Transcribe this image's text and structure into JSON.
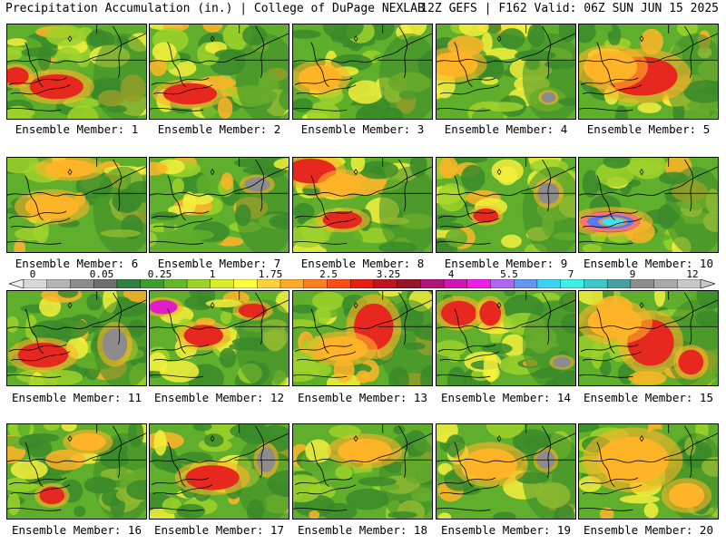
{
  "header": {
    "title_left": "Precipitation Accumulation (in.) | College of DuPage NEXLAB",
    "title_right": "12Z GEFS | F162 Valid: 06Z SUN JUN 15 2025"
  },
  "colorbar": {
    "tick_labels": [
      "0",
      "0.05",
      "0.25",
      "1",
      "1.75",
      "2.5",
      "3.25",
      "4",
      "5.5",
      "7",
      "9",
      "12"
    ],
    "colors": [
      "#d8d8d8",
      "#b4b4b4",
      "#8c8c8c",
      "#6e6e6e",
      "#2f7f3e",
      "#3f9b2f",
      "#63b82a",
      "#9ed22a",
      "#d8ec2a",
      "#ffff3c",
      "#ffd23c",
      "#ffaa28",
      "#ff7f1e",
      "#ff4b14",
      "#e61e14",
      "#c0141e",
      "#961428",
      "#b0147a",
      "#d214b4",
      "#f01ee6",
      "#b464f0",
      "#6496f0",
      "#3cd2f0",
      "#3cf0e6",
      "#3cc8c8",
      "#46a0a0",
      "#8c8c8c",
      "#a8a8a8",
      "#c8c8c8"
    ]
  },
  "legend_colors": {
    "green_dark": "#3a8a2a",
    "green": "#5fae2c",
    "green_light": "#9ed22a",
    "yellow": "#f4f03c",
    "orange": "#ffb428",
    "red": "#e6281e",
    "gray": "#8c8c8c",
    "magenta": "#e01ec8",
    "blue": "#5a78f0",
    "cyan": "#3ce6f0"
  },
  "members": [
    {
      "label": "Ensemble Member: 1"
    },
    {
      "label": "Ensemble Member: 2"
    },
    {
      "label": "Ensemble Member: 3"
    },
    {
      "label": "Ensemble Member: 4"
    },
    {
      "label": "Ensemble Member: 5"
    },
    {
      "label": "Ensemble Member: 6"
    },
    {
      "label": "Ensemble Member: 7"
    },
    {
      "label": "Ensemble Member: 8"
    },
    {
      "label": "Ensemble Member: 9"
    },
    {
      "label": "Ensemble Member: 10"
    },
    {
      "label": "Ensemble Member: 11"
    },
    {
      "label": "Ensemble Member: 12"
    },
    {
      "label": "Ensemble Member: 13"
    },
    {
      "label": "Ensemble Member: 14"
    },
    {
      "label": "Ensemble Member: 15"
    },
    {
      "label": "Ensemble Member: 16"
    },
    {
      "label": "Ensemble Member: 17"
    },
    {
      "label": "Ensemble Member: 18"
    },
    {
      "label": "Ensemble Member: 19"
    },
    {
      "label": "Ensemble Member: 20"
    }
  ]
}
